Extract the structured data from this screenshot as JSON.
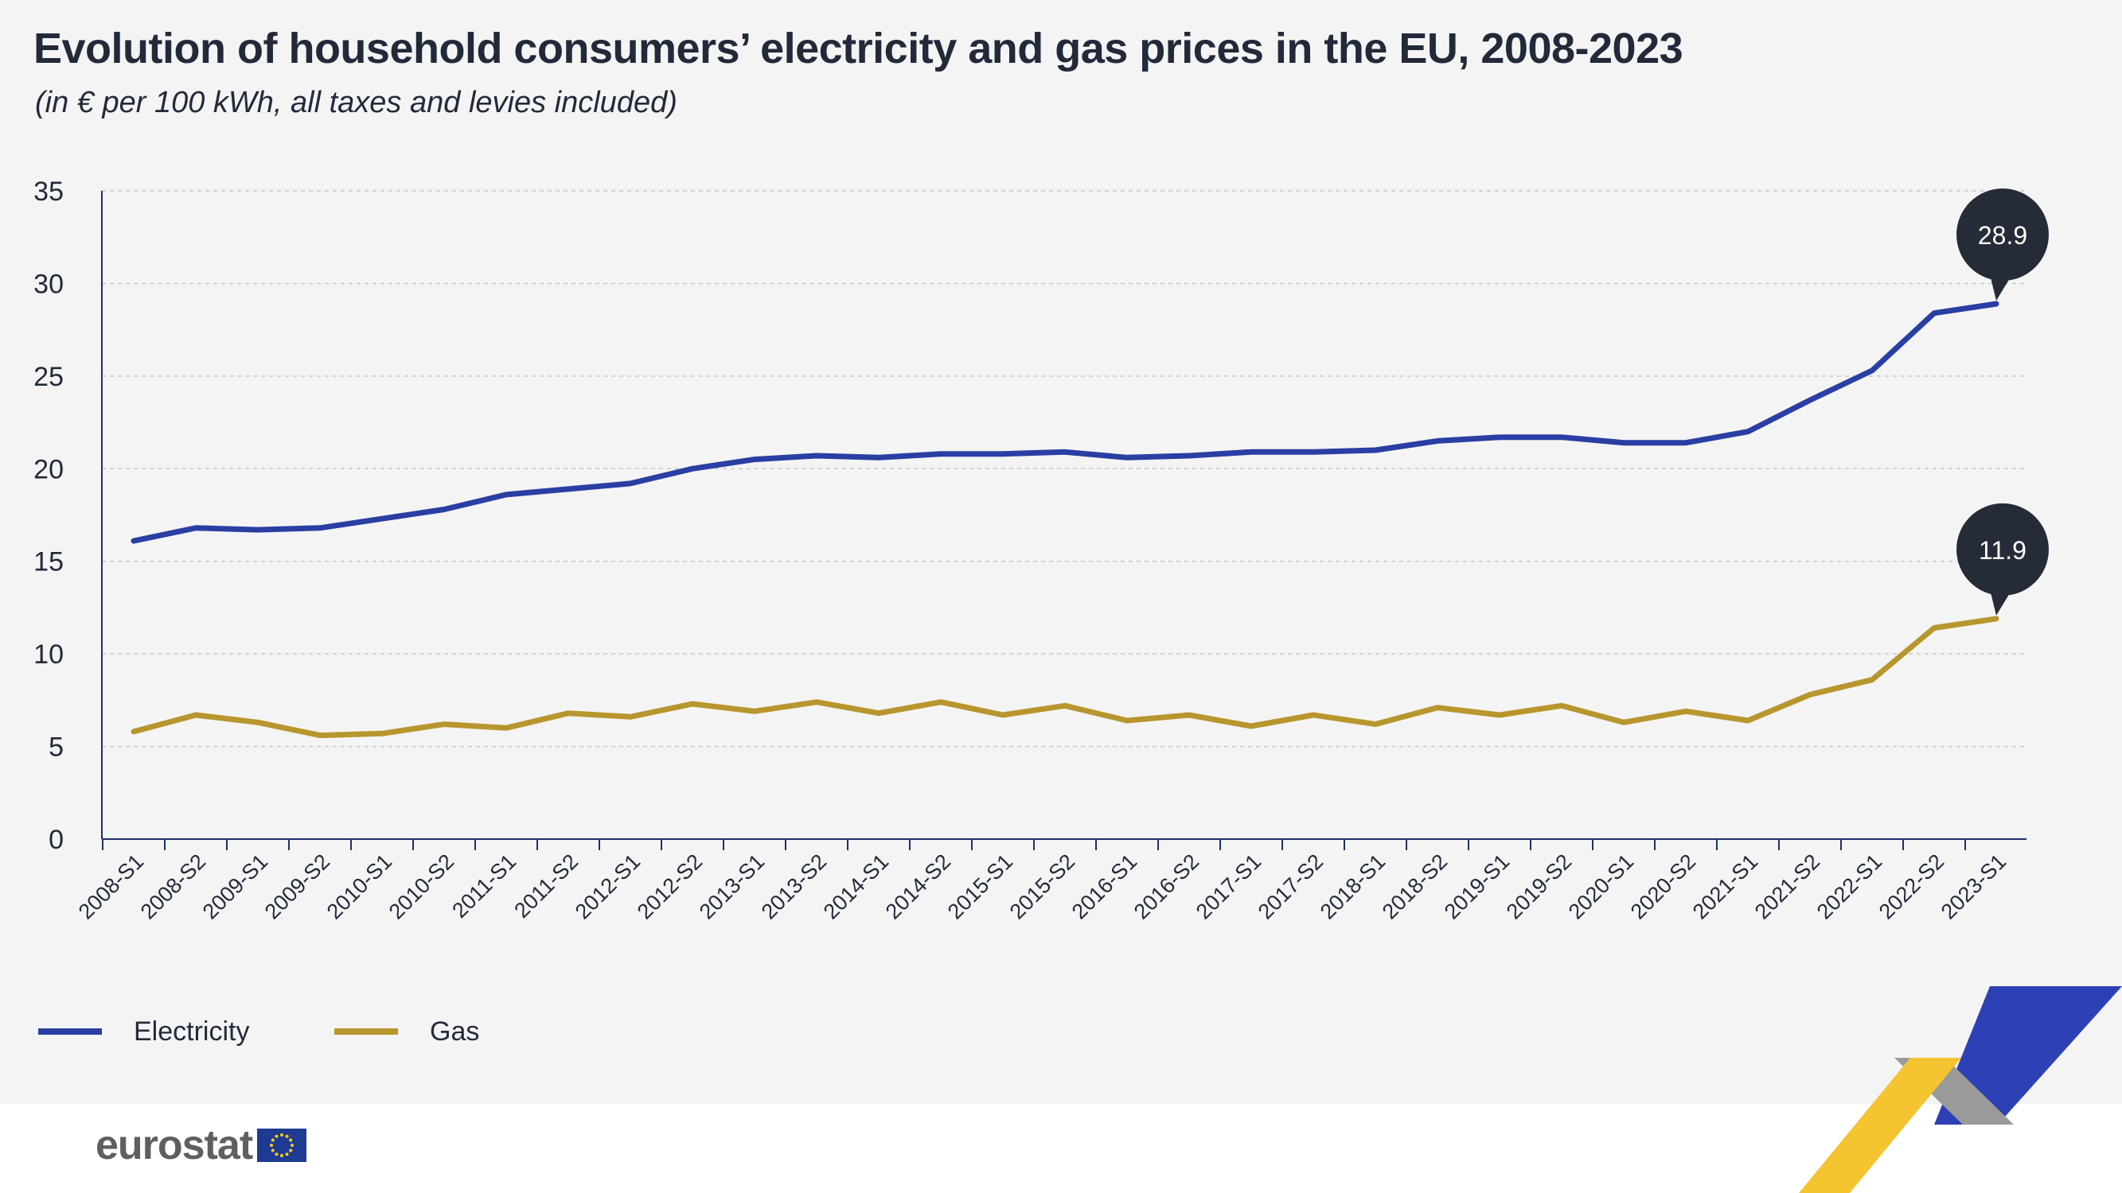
{
  "title": "Evolution of household consumers’ electricity and gas prices in the EU, 2008-2023",
  "subtitle": "(in € per 100 kWh, all taxes and levies included)",
  "colors": {
    "electricity": "#2a3fa3",
    "gas": "#b8962e",
    "callout": "#262b38",
    "axis": "#1f2f6b",
    "grid": "#c8c8c8"
  },
  "legend": [
    {
      "label": "Electricity",
      "color": "#2a3fa3"
    },
    {
      "label": "Gas",
      "color": "#b8962e"
    }
  ],
  "brand": {
    "name": "eurostat",
    "logo_icon": "eu-flag-icon"
  },
  "chart_data": {
    "type": "line",
    "title": "Evolution of household consumers’ electricity and gas prices in the EU, 2008-2023",
    "xlabel": "",
    "ylabel": "",
    "ylim": [
      0,
      35
    ],
    "yticks": [
      0,
      5,
      10,
      15,
      20,
      25,
      30,
      35
    ],
    "grid": true,
    "legend_position": "bottom-left",
    "categories": [
      "2008-S1",
      "2008-S2",
      "2009-S1",
      "2009-S2",
      "2010-S1",
      "2010-S2",
      "2011-S1",
      "2011-S2",
      "2012-S1",
      "2012-S2",
      "2013-S1",
      "2013-S2",
      "2014-S1",
      "2014-S2",
      "2015-S1",
      "2015-S2",
      "2016-S1",
      "2016-S2",
      "2017-S1",
      "2017-S2",
      "2018-S1",
      "2018-S2",
      "2019-S1",
      "2019-S2",
      "2020-S1",
      "2020-S2",
      "2021-S1",
      "2021-S2",
      "2022-S1",
      "2022-S2",
      "2023-S1"
    ],
    "series": [
      {
        "name": "Electricity",
        "color": "#2a3fa3",
        "values": [
          16.1,
          16.8,
          16.7,
          16.8,
          17.3,
          17.8,
          18.6,
          18.9,
          19.2,
          20.0,
          20.5,
          20.7,
          20.6,
          20.8,
          20.8,
          20.9,
          20.6,
          20.7,
          20.9,
          20.9,
          21.0,
          21.5,
          21.7,
          21.7,
          21.4,
          21.4,
          22.0,
          23.7,
          25.3,
          28.4,
          28.9
        ]
      },
      {
        "name": "Gas",
        "color": "#b8962e",
        "values": [
          5.8,
          6.7,
          6.3,
          5.6,
          5.7,
          6.2,
          6.0,
          6.8,
          6.6,
          7.3,
          6.9,
          7.4,
          6.8,
          7.4,
          6.7,
          7.2,
          6.4,
          6.7,
          6.1,
          6.7,
          6.2,
          7.1,
          6.7,
          7.2,
          6.3,
          6.9,
          6.4,
          7.8,
          8.6,
          11.4,
          11.9
        ]
      }
    ],
    "annotations": [
      {
        "series": "Electricity",
        "category": "2023-S1",
        "label": "28.9"
      },
      {
        "series": "Gas",
        "category": "2023-S1",
        "label": "11.9"
      }
    ]
  }
}
